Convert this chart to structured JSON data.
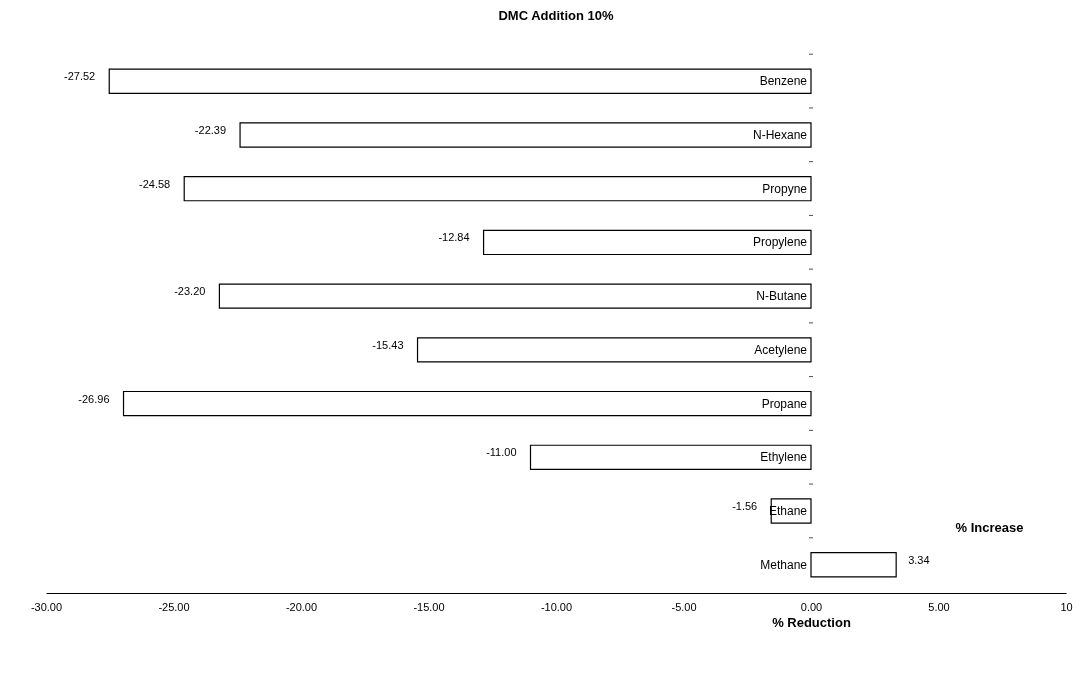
{
  "chart_data": {
    "type": "bar",
    "orientation": "horizontal",
    "title": "DMC Addition 10%",
    "xlabel": "% Reduction",
    "categories": [
      "Benzene",
      "N-Hexane",
      "Propyne",
      "Propylene",
      "N-Butane",
      "Acetylene",
      "Propane",
      "Ethylene",
      "Ethane",
      "Methane"
    ],
    "values": [
      -27.52,
      -22.39,
      -24.58,
      -12.84,
      -23.2,
      -15.43,
      -26.96,
      -11.0,
      -1.56,
      3.34
    ],
    "value_labels": [
      "-27.52",
      "-22.39",
      "-24.58",
      "-12.84",
      "-23.20",
      "-15.43",
      "-26.96",
      "-11.00",
      "-1.56",
      "3.34"
    ],
    "color": "#ffffff",
    "xlim": [
      -30,
      10
    ],
    "xticks": [
      {
        "value": -30,
        "label": "-30.00"
      },
      {
        "value": -25,
        "label": "-25.00"
      },
      {
        "value": -20,
        "label": "-20.00"
      },
      {
        "value": -15,
        "label": "-15.00"
      },
      {
        "value": -10,
        "label": "-10.00"
      },
      {
        "value": -5,
        "label": "-5.00"
      },
      {
        "value": 0,
        "label": "0.00"
      },
      {
        "value": 5,
        "label": "5.00"
      },
      10
    ],
    "annotations": [
      "% Increase"
    ],
    "grid": false
  }
}
